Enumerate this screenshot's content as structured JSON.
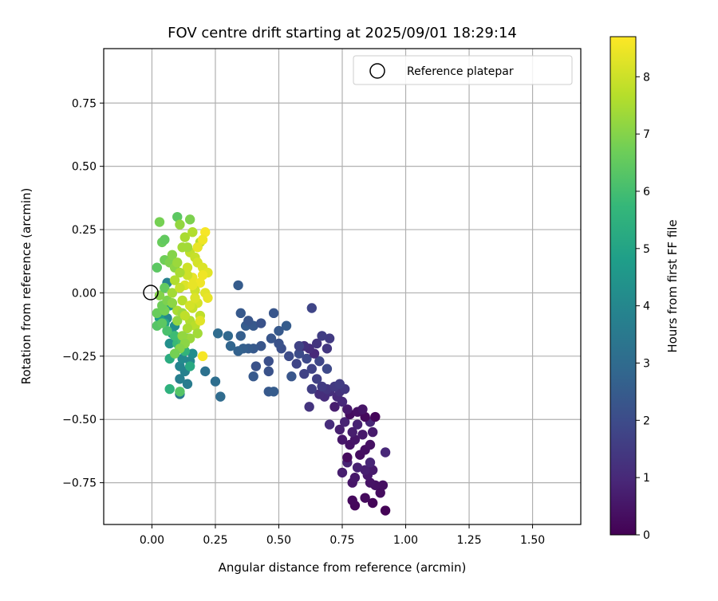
{
  "chart_data": {
    "type": "scatter",
    "title": "FOV centre drift starting at 2025/09/01 18:29:14",
    "xlabel": "Angular distance from reference (arcmin)",
    "ylabel": "Rotation from reference (arcmin)",
    "xlim": [
      -0.19,
      1.69
    ],
    "ylim": [
      -0.915,
      0.965
    ],
    "xticks": [
      0.0,
      0.25,
      0.5,
      0.75,
      1.0,
      1.25,
      1.5
    ],
    "xtick_labels": [
      "0.00",
      "0.25",
      "0.50",
      "0.75",
      "1.00",
      "1.25",
      "1.50"
    ],
    "yticks": [
      -0.75,
      -0.5,
      -0.25,
      0.0,
      0.25,
      0.5,
      0.75
    ],
    "ytick_labels": [
      "−0.75",
      "−0.50",
      "−0.25",
      "0.00",
      "0.25",
      "0.50",
      "0.75"
    ],
    "grid": true,
    "legend": {
      "position": "top-right",
      "entries": [
        "Reference platepar"
      ]
    },
    "reference": {
      "x": 0.0,
      "y": 0.0,
      "label": "Reference platepar",
      "marker": "open-circle"
    },
    "colorbar": {
      "label": "Hours from first FF file",
      "colormap": "viridis",
      "min": 0,
      "max": 8.7,
      "ticks": [
        0,
        1,
        2,
        3,
        4,
        5,
        6,
        7,
        8
      ],
      "tick_labels": [
        "0",
        "1",
        "2",
        "3",
        "4",
        "5",
        "6",
        "7",
        "8"
      ]
    },
    "points": [
      {
        "x": 0.92,
        "y": -0.86,
        "t": 0.05
      },
      {
        "x": 0.87,
        "y": -0.83,
        "t": 0.1
      },
      {
        "x": 0.8,
        "y": -0.84,
        "t": 0.15
      },
      {
        "x": 0.79,
        "y": -0.82,
        "t": 0.2
      },
      {
        "x": 0.84,
        "y": -0.81,
        "t": 0.25
      },
      {
        "x": 0.9,
        "y": -0.79,
        "t": 0.3
      },
      {
        "x": 0.91,
        "y": -0.76,
        "t": 0.35
      },
      {
        "x": 0.88,
        "y": -0.76,
        "t": 0.4
      },
      {
        "x": 0.86,
        "y": -0.75,
        "t": 0.45
      },
      {
        "x": 0.79,
        "y": -0.75,
        "t": 0.5
      },
      {
        "x": 0.8,
        "y": -0.73,
        "t": 0.55
      },
      {
        "x": 0.85,
        "y": -0.72,
        "t": 0.6
      },
      {
        "x": 0.87,
        "y": -0.7,
        "t": 0.65
      },
      {
        "x": 0.75,
        "y": -0.71,
        "t": 0.7
      },
      {
        "x": 0.84,
        "y": -0.7,
        "t": 0.75
      },
      {
        "x": 0.81,
        "y": -0.69,
        "t": 0.8
      },
      {
        "x": 0.77,
        "y": -0.67,
        "t": 0.85
      },
      {
        "x": 0.86,
        "y": -0.67,
        "t": 0.9
      },
      {
        "x": 0.92,
        "y": -0.63,
        "t": 0.95
      },
      {
        "x": 0.77,
        "y": -0.65,
        "t": 0.25
      },
      {
        "x": 0.82,
        "y": -0.64,
        "t": 0.3
      },
      {
        "x": 0.84,
        "y": -0.62,
        "t": 0.35
      },
      {
        "x": 0.86,
        "y": -0.6,
        "t": 0.4
      },
      {
        "x": 0.78,
        "y": -0.6,
        "t": 0.45
      },
      {
        "x": 0.8,
        "y": -0.58,
        "t": 0.5
      },
      {
        "x": 0.75,
        "y": -0.58,
        "t": 0.55
      },
      {
        "x": 0.83,
        "y": -0.56,
        "t": 0.6
      },
      {
        "x": 0.87,
        "y": -0.55,
        "t": 0.65
      },
      {
        "x": 0.79,
        "y": -0.55,
        "t": 0.7
      },
      {
        "x": 0.74,
        "y": -0.54,
        "t": 0.75
      },
      {
        "x": 0.81,
        "y": -0.52,
        "t": 0.8
      },
      {
        "x": 0.76,
        "y": -0.51,
        "t": 0.85
      },
      {
        "x": 0.86,
        "y": -0.51,
        "t": 0.9
      },
      {
        "x": 0.88,
        "y": -0.49,
        "t": 0.1
      },
      {
        "x": 0.84,
        "y": -0.49,
        "t": 0.2
      },
      {
        "x": 0.78,
        "y": -0.48,
        "t": 0.3
      },
      {
        "x": 0.81,
        "y": -0.47,
        "t": 0.4
      },
      {
        "x": 0.83,
        "y": -0.46,
        "t": 0.5
      },
      {
        "x": 0.77,
        "y": -0.46,
        "t": 0.6
      },
      {
        "x": 0.72,
        "y": -0.45,
        "t": 0.7
      },
      {
        "x": 0.7,
        "y": -0.52,
        "t": 1.1
      },
      {
        "x": 0.75,
        "y": -0.43,
        "t": 1.0
      },
      {
        "x": 0.73,
        "y": -0.41,
        "t": 1.05
      },
      {
        "x": 0.68,
        "y": -0.41,
        "t": 1.1
      },
      {
        "x": 0.66,
        "y": -0.4,
        "t": 1.15
      },
      {
        "x": 0.7,
        "y": -0.39,
        "t": 1.2
      },
      {
        "x": 0.74,
        "y": -0.39,
        "t": 1.25
      },
      {
        "x": 0.62,
        "y": -0.45,
        "t": 1.3
      },
      {
        "x": 0.69,
        "y": -0.38,
        "t": 1.35
      },
      {
        "x": 0.76,
        "y": -0.38,
        "t": 1.4
      },
      {
        "x": 0.72,
        "y": -0.37,
        "t": 1.45
      },
      {
        "x": 0.67,
        "y": -0.37,
        "t": 1.5
      },
      {
        "x": 0.74,
        "y": -0.36,
        "t": 1.55
      },
      {
        "x": 0.63,
        "y": -0.38,
        "t": 1.6
      },
      {
        "x": 0.65,
        "y": -0.34,
        "t": 1.65
      },
      {
        "x": 0.6,
        "y": -0.32,
        "t": 1.7
      },
      {
        "x": 0.63,
        "y": -0.3,
        "t": 1.75
      },
      {
        "x": 0.57,
        "y": -0.28,
        "t": 1.8
      },
      {
        "x": 0.66,
        "y": -0.27,
        "t": 1.85
      },
      {
        "x": 0.61,
        "y": -0.26,
        "t": 1.9
      },
      {
        "x": 0.69,
        "y": -0.3,
        "t": 1.95
      },
      {
        "x": 0.58,
        "y": -0.24,
        "t": 2.0
      },
      {
        "x": 0.64,
        "y": -0.24,
        "t": 1.0
      },
      {
        "x": 0.62,
        "y": -0.22,
        "t": 1.1
      },
      {
        "x": 0.6,
        "y": -0.21,
        "t": 1.2
      },
      {
        "x": 0.65,
        "y": -0.2,
        "t": 1.3
      },
      {
        "x": 0.69,
        "y": -0.22,
        "t": 1.4
      },
      {
        "x": 0.7,
        "y": -0.18,
        "t": 1.5
      },
      {
        "x": 0.67,
        "y": -0.17,
        "t": 1.6
      },
      {
        "x": 0.58,
        "y": -0.21,
        "t": 1.7
      },
      {
        "x": 0.63,
        "y": -0.06,
        "t": 1.8
      },
      {
        "x": 0.54,
        "y": -0.25,
        "t": 2.0
      },
      {
        "x": 0.51,
        "y": -0.22,
        "t": 2.1
      },
      {
        "x": 0.5,
        "y": -0.2,
        "t": 2.2
      },
      {
        "x": 0.47,
        "y": -0.18,
        "t": 2.3
      },
      {
        "x": 0.5,
        "y": -0.15,
        "t": 2.4
      },
      {
        "x": 0.53,
        "y": -0.13,
        "t": 2.5
      },
      {
        "x": 0.48,
        "y": -0.08,
        "t": 2.3
      },
      {
        "x": 0.46,
        "y": -0.27,
        "t": 2.1
      },
      {
        "x": 0.46,
        "y": -0.31,
        "t": 2.2
      },
      {
        "x": 0.55,
        "y": -0.33,
        "t": 2.3
      },
      {
        "x": 0.46,
        "y": -0.39,
        "t": 2.4
      },
      {
        "x": 0.48,
        "y": -0.39,
        "t": 2.5
      },
      {
        "x": 0.4,
        "y": -0.33,
        "t": 2.4
      },
      {
        "x": 0.41,
        "y": -0.29,
        "t": 2.2
      },
      {
        "x": 0.43,
        "y": -0.21,
        "t": 2.3
      },
      {
        "x": 0.4,
        "y": -0.22,
        "t": 2.4
      },
      {
        "x": 0.38,
        "y": -0.22,
        "t": 2.5
      },
      {
        "x": 0.36,
        "y": -0.22,
        "t": 2.6
      },
      {
        "x": 0.34,
        "y": -0.23,
        "t": 2.7
      },
      {
        "x": 0.31,
        "y": -0.21,
        "t": 2.8
      },
      {
        "x": 0.35,
        "y": -0.17,
        "t": 2.6
      },
      {
        "x": 0.3,
        "y": -0.17,
        "t": 2.9
      },
      {
        "x": 0.37,
        "y": -0.13,
        "t": 2.5
      },
      {
        "x": 0.4,
        "y": -0.13,
        "t": 2.4
      },
      {
        "x": 0.38,
        "y": -0.11,
        "t": 2.3
      },
      {
        "x": 0.43,
        "y": -0.12,
        "t": 2.2
      },
      {
        "x": 0.35,
        "y": -0.08,
        "t": 2.4
      },
      {
        "x": 0.34,
        "y": 0.03,
        "t": 2.5
      },
      {
        "x": 0.26,
        "y": -0.16,
        "t": 3.0
      },
      {
        "x": 0.21,
        "y": -0.31,
        "t": 3.2
      },
      {
        "x": 0.25,
        "y": -0.35,
        "t": 3.1
      },
      {
        "x": 0.27,
        "y": -0.41,
        "t": 3.0
      },
      {
        "x": 0.11,
        "y": -0.4,
        "t": 3.5
      },
      {
        "x": 0.14,
        "y": -0.36,
        "t": 3.6
      },
      {
        "x": 0.11,
        "y": -0.34,
        "t": 3.7
      },
      {
        "x": 0.13,
        "y": -0.31,
        "t": 3.8
      },
      {
        "x": 0.11,
        "y": -0.29,
        "t": 3.9
      },
      {
        "x": 0.15,
        "y": -0.27,
        "t": 4.0
      },
      {
        "x": 0.12,
        "y": -0.26,
        "t": 4.1
      },
      {
        "x": 0.16,
        "y": -0.24,
        "t": 4.2
      },
      {
        "x": 0.07,
        "y": -0.2,
        "t": 4.3
      },
      {
        "x": 0.11,
        "y": -0.22,
        "t": 4.4
      },
      {
        "x": 0.08,
        "y": -0.16,
        "t": 4.5
      },
      {
        "x": 0.09,
        "y": -0.13,
        "t": 4.2
      },
      {
        "x": 0.06,
        "y": -0.1,
        "t": 4.0
      },
      {
        "x": 0.07,
        "y": -0.05,
        "t": 4.6
      },
      {
        "x": 0.06,
        "y": 0.04,
        "t": 3.8
      },
      {
        "x": 0.03,
        "y": -0.1,
        "t": 4.8
      },
      {
        "x": 0.05,
        "y": -0.12,
        "t": 5.0
      },
      {
        "x": 0.07,
        "y": -0.38,
        "t": 5.5
      },
      {
        "x": 0.11,
        "y": -0.39,
        "t": 6.3
      },
      {
        "x": 0.07,
        "y": -0.26,
        "t": 5.3
      },
      {
        "x": 0.15,
        "y": -0.29,
        "t": 5.2
      },
      {
        "x": 0.13,
        "y": -0.23,
        "t": 5.6
      },
      {
        "x": 0.1,
        "y": -0.2,
        "t": 5.8
      },
      {
        "x": 0.12,
        "y": -0.19,
        "t": 6.0
      },
      {
        "x": 0.14,
        "y": -0.18,
        "t": 6.2
      },
      {
        "x": 0.09,
        "y": -0.17,
        "t": 5.9
      },
      {
        "x": 0.06,
        "y": -0.15,
        "t": 6.1
      },
      {
        "x": 0.02,
        "y": -0.13,
        "t": 6.3
      },
      {
        "x": 0.04,
        "y": -0.12,
        "t": 6.4
      },
      {
        "x": 0.02,
        "y": -0.08,
        "t": 6.6
      },
      {
        "x": 0.05,
        "y": -0.07,
        "t": 6.8
      },
      {
        "x": 0.04,
        "y": -0.05,
        "t": 6.7
      },
      {
        "x": 0.06,
        "y": -0.03,
        "t": 6.9
      },
      {
        "x": 0.03,
        "y": -0.01,
        "t": 7.0
      },
      {
        "x": 0.05,
        "y": 0.02,
        "t": 6.5
      },
      {
        "x": 0.02,
        "y": 0.1,
        "t": 6.4
      },
      {
        "x": 0.05,
        "y": 0.13,
        "t": 6.7
      },
      {
        "x": 0.07,
        "y": 0.12,
        "t": 6.9
      },
      {
        "x": 0.04,
        "y": 0.2,
        "t": 6.6
      },
      {
        "x": 0.05,
        "y": 0.21,
        "t": 6.5
      },
      {
        "x": 0.03,
        "y": 0.28,
        "t": 6.8
      },
      {
        "x": 0.1,
        "y": 0.3,
        "t": 6.4
      },
      {
        "x": 0.15,
        "y": 0.29,
        "t": 6.9
      },
      {
        "x": 0.11,
        "y": 0.27,
        "t": 7.2
      },
      {
        "x": 0.08,
        "y": 0.15,
        "t": 7.0
      },
      {
        "x": 0.09,
        "y": 0.1,
        "t": 7.1
      },
      {
        "x": 0.1,
        "y": 0.12,
        "t": 7.3
      },
      {
        "x": 0.12,
        "y": 0.18,
        "t": 7.4
      },
      {
        "x": 0.13,
        "y": 0.22,
        "t": 7.5
      },
      {
        "x": 0.16,
        "y": 0.24,
        "t": 7.6
      },
      {
        "x": 0.19,
        "y": 0.2,
        "t": 7.7
      },
      {
        "x": 0.15,
        "y": 0.16,
        "t": 7.8
      },
      {
        "x": 0.17,
        "y": 0.14,
        "t": 7.9
      },
      {
        "x": 0.14,
        "y": 0.1,
        "t": 8.0
      },
      {
        "x": 0.18,
        "y": 0.12,
        "t": 8.1
      },
      {
        "x": 0.2,
        "y": 0.1,
        "t": 8.2
      },
      {
        "x": 0.22,
        "y": 0.08,
        "t": 8.3
      },
      {
        "x": 0.16,
        "y": 0.06,
        "t": 8.4
      },
      {
        "x": 0.19,
        "y": 0.04,
        "t": 8.5
      },
      {
        "x": 0.13,
        "y": 0.03,
        "t": 8.2
      },
      {
        "x": 0.17,
        "y": 0.01,
        "t": 8.0
      },
      {
        "x": 0.21,
        "y": 0.24,
        "t": 8.6
      },
      {
        "x": 0.2,
        "y": 0.21,
        "t": 8.5
      },
      {
        "x": 0.18,
        "y": 0.18,
        "t": 8.4
      },
      {
        "x": 0.21,
        "y": 0.0,
        "t": 8.3
      },
      {
        "x": 0.22,
        "y": -0.02,
        "t": 8.4
      },
      {
        "x": 0.18,
        "y": -0.04,
        "t": 8.1
      },
      {
        "x": 0.16,
        "y": -0.06,
        "t": 7.9
      },
      {
        "x": 0.19,
        "y": -0.09,
        "t": 7.8
      },
      {
        "x": 0.15,
        "y": -0.11,
        "t": 7.6
      },
      {
        "x": 0.17,
        "y": -0.13,
        "t": 7.7
      },
      {
        "x": 0.14,
        "y": -0.14,
        "t": 7.5
      },
      {
        "x": 0.18,
        "y": -0.16,
        "t": 7.4
      },
      {
        "x": 0.15,
        "y": -0.18,
        "t": 7.3
      },
      {
        "x": 0.12,
        "y": -0.17,
        "t": 7.2
      },
      {
        "x": 0.13,
        "y": -0.2,
        "t": 7.1
      },
      {
        "x": 0.11,
        "y": -0.22,
        "t": 7.0
      },
      {
        "x": 0.09,
        "y": -0.24,
        "t": 6.8
      },
      {
        "x": 0.2,
        "y": -0.25,
        "t": 8.6
      },
      {
        "x": 0.1,
        "y": -0.07,
        "t": 7.5
      },
      {
        "x": 0.12,
        "y": -0.03,
        "t": 7.7
      },
      {
        "x": 0.08,
        "y": 0.0,
        "t": 7.4
      },
      {
        "x": 0.11,
        "y": 0.02,
        "t": 7.9
      },
      {
        "x": 0.09,
        "y": 0.05,
        "t": 7.6
      },
      {
        "x": 0.14,
        "y": 0.07,
        "t": 8.0
      },
      {
        "x": 0.12,
        "y": -0.08,
        "t": 7.3
      },
      {
        "x": 0.1,
        "y": -0.11,
        "t": 7.2
      },
      {
        "x": 0.08,
        "y": -0.04,
        "t": 7.1
      },
      {
        "x": 0.13,
        "y": -0.09,
        "t": 7.8
      },
      {
        "x": 0.15,
        "y": -0.05,
        "t": 8.1
      },
      {
        "x": 0.17,
        "y": -0.02,
        "t": 8.2
      },
      {
        "x": 0.19,
        "y": -0.11,
        "t": 8.3
      },
      {
        "x": 0.16,
        "y": 0.03,
        "t": 8.4
      },
      {
        "x": 0.14,
        "y": 0.18,
        "t": 7.4
      },
      {
        "x": 0.11,
        "y": 0.08,
        "t": 7.5
      },
      {
        "x": 0.2,
        "y": 0.07,
        "t": 8.5
      }
    ]
  }
}
